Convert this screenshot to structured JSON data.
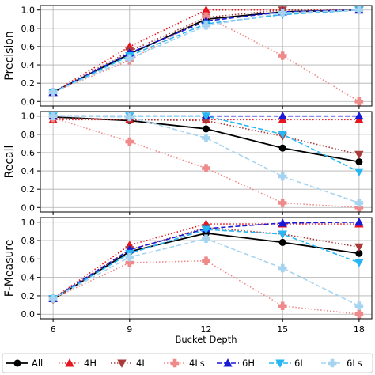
{
  "chart_data": [
    {
      "type": "line",
      "ylabel": "Precision",
      "ylim": [
        0,
        1
      ],
      "yticks": [
        "0.0",
        "0.2",
        "0.4",
        "0.6",
        "0.8",
        "1.0"
      ],
      "x": [
        6,
        9,
        12,
        15,
        18
      ],
      "series": [
        {
          "name": "All",
          "values": [
            0.1,
            0.52,
            0.9,
            0.98,
            1.0
          ]
        },
        {
          "name": "4H",
          "values": [
            0.1,
            0.6,
            1.0,
            1.0,
            1.0
          ]
        },
        {
          "name": "4L",
          "values": [
            0.1,
            0.55,
            0.92,
            1.0,
            1.0
          ]
        },
        {
          "name": "4Ls",
          "values": [
            0.1,
            0.45,
            0.93,
            0.5,
            0.0
          ]
        },
        {
          "name": "6H",
          "values": [
            0.1,
            0.53,
            0.88,
            0.98,
            1.0
          ]
        },
        {
          "name": "6L",
          "values": [
            0.1,
            0.5,
            0.85,
            0.95,
            1.0
          ]
        },
        {
          "name": "6Ls",
          "values": [
            0.1,
            0.47,
            0.83,
            0.97,
            1.0
          ]
        }
      ]
    },
    {
      "type": "line",
      "ylabel": "Recall",
      "ylim": [
        0,
        1
      ],
      "yticks": [
        "0.0",
        "0.2",
        "0.4",
        "0.6",
        "0.8",
        "1.0"
      ],
      "x": [
        6,
        9,
        12,
        15,
        18
      ],
      "series": [
        {
          "name": "All",
          "values": [
            0.99,
            0.95,
            0.86,
            0.65,
            0.5
          ]
        },
        {
          "name": "4H",
          "values": [
            0.96,
            0.96,
            0.96,
            0.96,
            0.96
          ]
        },
        {
          "name": "4L",
          "values": [
            0.98,
            0.96,
            0.95,
            0.78,
            0.58
          ]
        },
        {
          "name": "4Ls",
          "values": [
            0.98,
            0.72,
            0.43,
            0.05,
            0.0
          ]
        },
        {
          "name": "6H",
          "values": [
            1.0,
            1.0,
            1.0,
            1.0,
            1.0
          ]
        },
        {
          "name": "6L",
          "values": [
            1.0,
            1.0,
            1.0,
            0.8,
            0.39
          ]
        },
        {
          "name": "6Ls",
          "values": [
            1.0,
            0.99,
            0.76,
            0.34,
            0.05
          ]
        }
      ]
    },
    {
      "type": "line",
      "ylabel": "F-Measure",
      "xlabel": "Bucket Depth",
      "ylim": [
        0,
        1
      ],
      "yticks": [
        "0.0",
        "0.2",
        "0.4",
        "0.6",
        "0.8",
        "1.0"
      ],
      "x": [
        6,
        9,
        12,
        15,
        18
      ],
      "xticks": [
        "6",
        "9",
        "12",
        "15",
        "18"
      ],
      "series": [
        {
          "name": "All",
          "values": [
            0.16,
            0.68,
            0.88,
            0.78,
            0.66
          ]
        },
        {
          "name": "4H",
          "values": [
            0.17,
            0.75,
            0.98,
            0.98,
            0.98
          ]
        },
        {
          "name": "4L",
          "values": [
            0.16,
            0.7,
            0.94,
            0.87,
            0.73
          ]
        },
        {
          "name": "4Ls",
          "values": [
            0.17,
            0.56,
            0.58,
            0.09,
            0.0
          ]
        },
        {
          "name": "6H",
          "values": [
            0.17,
            0.7,
            0.93,
            0.99,
            1.0
          ]
        },
        {
          "name": "6L",
          "values": [
            0.17,
            0.66,
            0.92,
            0.87,
            0.56
          ]
        },
        {
          "name": "6Ls",
          "values": [
            0.17,
            0.62,
            0.82,
            0.5,
            0.09
          ]
        }
      ]
    }
  ],
  "styles": {
    "All": {
      "color": "#000000",
      "dash": "",
      "marker": "circle",
      "width": 1.8
    },
    "4H": {
      "color": "#e8141e",
      "dash": "1.5,2.5",
      "marker": "triangle-up",
      "width": 1.6
    },
    "4L": {
      "color": "#a83a3a",
      "dash": "1.5,2.5",
      "marker": "triangle-down",
      "width": 1.6
    },
    "4Ls": {
      "color": "#ef8a8a",
      "dash": "1.5,2.5",
      "marker": "plus",
      "width": 1.6
    },
    "6H": {
      "color": "#1a1ad6",
      "dash": "6,3",
      "marker": "triangle-up",
      "width": 1.6
    },
    "6L": {
      "color": "#27b6f2",
      "dash": "6,3",
      "marker": "triangle-down",
      "width": 1.6
    },
    "6Ls": {
      "color": "#a6d3f0",
      "dash": "6,3",
      "marker": "plus",
      "width": 1.6
    }
  },
  "legend": {
    "placement": "bottom",
    "entries": [
      "All",
      "4H",
      "4L",
      "4Ls",
      "6H",
      "6L",
      "6Ls"
    ]
  }
}
